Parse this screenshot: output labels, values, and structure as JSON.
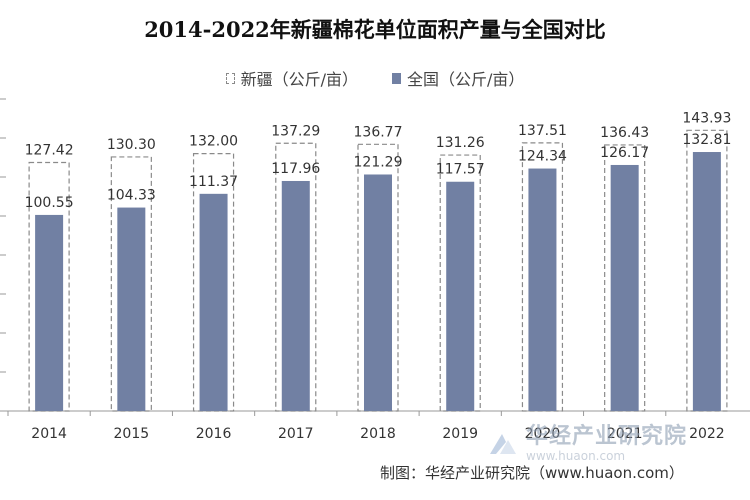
{
  "chart_data": {
    "type": "bar",
    "title": "2014-2022年新疆棉花单位面积产量与全国对比",
    "categories": [
      "2014",
      "2015",
      "2016",
      "2017",
      "2018",
      "2019",
      "2020",
      "2021",
      "2022"
    ],
    "series": [
      {
        "name": "新疆（公斤/亩）",
        "values": [
          127.42,
          130.3,
          132.0,
          137.29,
          136.77,
          131.26,
          137.51,
          136.43,
          143.93
        ],
        "labels": [
          "127.42",
          "130.30",
          "132.00",
          "137.29",
          "136.77",
          "131.26",
          "137.51",
          "136.43",
          "143.93"
        ],
        "style": "dashed-outline",
        "color": "#8a8a8a"
      },
      {
        "name": "全国（公斤/亩）",
        "values": [
          100.55,
          104.33,
          111.37,
          117.96,
          121.29,
          117.57,
          124.34,
          126.17,
          132.81
        ],
        "labels": [
          "100.55",
          "104.33",
          "111.37",
          "117.96",
          "121.29",
          "117.57",
          "124.34",
          "126.17",
          "132.81"
        ],
        "style": "solid",
        "color": "#7180a3"
      }
    ],
    "ylim": [
      0,
      160
    ],
    "legend_position": "top-center",
    "grid": false
  },
  "legend": {
    "xinjiang": "新疆（公斤/亩）",
    "national": "全国（公斤/亩）"
  },
  "watermark": {
    "name": "华经产业研究院",
    "url": "www.huaon.com"
  },
  "footer": {
    "credit": "制图：华经产业研究院（www.huaon.com）"
  }
}
